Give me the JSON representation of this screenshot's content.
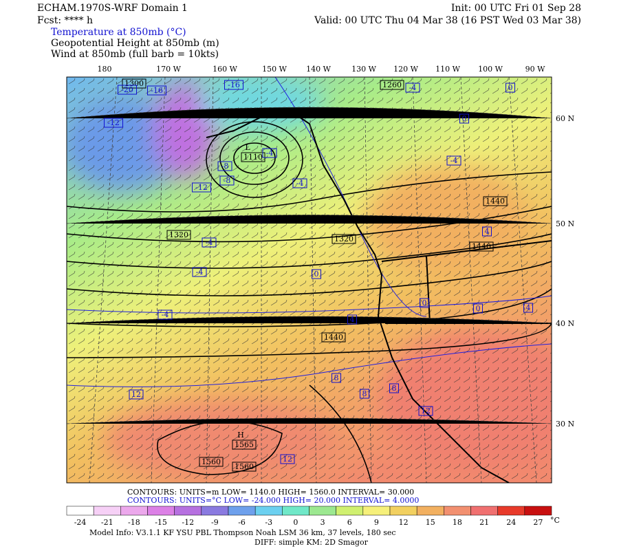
{
  "header": {
    "title": "ECHAM.1970S-WRF Domain 1",
    "init": "Init: 00 UTC Fri 01 Sep 28",
    "fcst": "Fcst: **** h",
    "valid": "Valid: 00 UTC Thu 04 Mar 38 (16 PST Wed 03 Mar 38)",
    "fields": [
      "Temperature at 850mb (°C)",
      "Geopotential Height at 850mb (m)",
      "Wind at 850mb (full barb = 10kts)"
    ]
  },
  "map": {
    "longitudes": [
      "180",
      "170 W",
      "160 W",
      "150 W",
      "140 W",
      "130 W",
      "120 W",
      "110 W",
      "100 W",
      "90 W"
    ],
    "latitudes": [
      "60 N",
      "50 N",
      "40 N",
      "30 N"
    ],
    "height_labels": [
      "1300",
      "1260",
      "1320",
      "1320",
      "1440",
      "1440",
      "1440",
      "1560",
      "1560"
    ],
    "high": {
      "symbol": "H",
      "value": "1565"
    },
    "low": {
      "symbol": "L",
      "value": "1110"
    },
    "temperature_labels": [
      -20,
      -16,
      -16,
      -12,
      -8,
      -8,
      -12,
      -4,
      -4,
      -4,
      -4,
      0,
      -4,
      4,
      8,
      8,
      8,
      12,
      12,
      12,
      -4,
      0,
      0,
      -4,
      4,
      0,
      0,
      4
    ]
  },
  "footer": {
    "contours_height": "CONTOURS:  UNITS=m   LOW=  1140.0      HIGH=  1560.0      INTERVAL=  30.000",
    "contours_temp": "CONTOURS:  UNITS=°C  LOW= -24.000     HIGH=  20.000      INTERVAL=  4.0000",
    "model_info": "Model Info: V3.1.1   KF     YSU PBL   Thompson    Noah LSM  36 km,   37 levels,  180 sec",
    "diff": "DIFF: simple KM: 2D Smagor"
  },
  "colorbar": {
    "ticks": [
      -24,
      -21,
      -18,
      -15,
      -12,
      -9,
      -6,
      -3,
      0,
      3,
      6,
      9,
      12,
      15,
      18,
      21,
      24,
      27
    ],
    "unit": "°C",
    "colors": [
      "#ffffff",
      "#f6d0f6",
      "#eca8ec",
      "#dc80e6",
      "#b670e0",
      "#8a7ae0",
      "#6ea0ec",
      "#6cd0f0",
      "#70e8c8",
      "#9ce890",
      "#d0f070",
      "#f6f07a",
      "#f2d060",
      "#f2b060",
      "#f29070",
      "#f07070",
      "#e83a2a",
      "#c81010"
    ]
  }
}
